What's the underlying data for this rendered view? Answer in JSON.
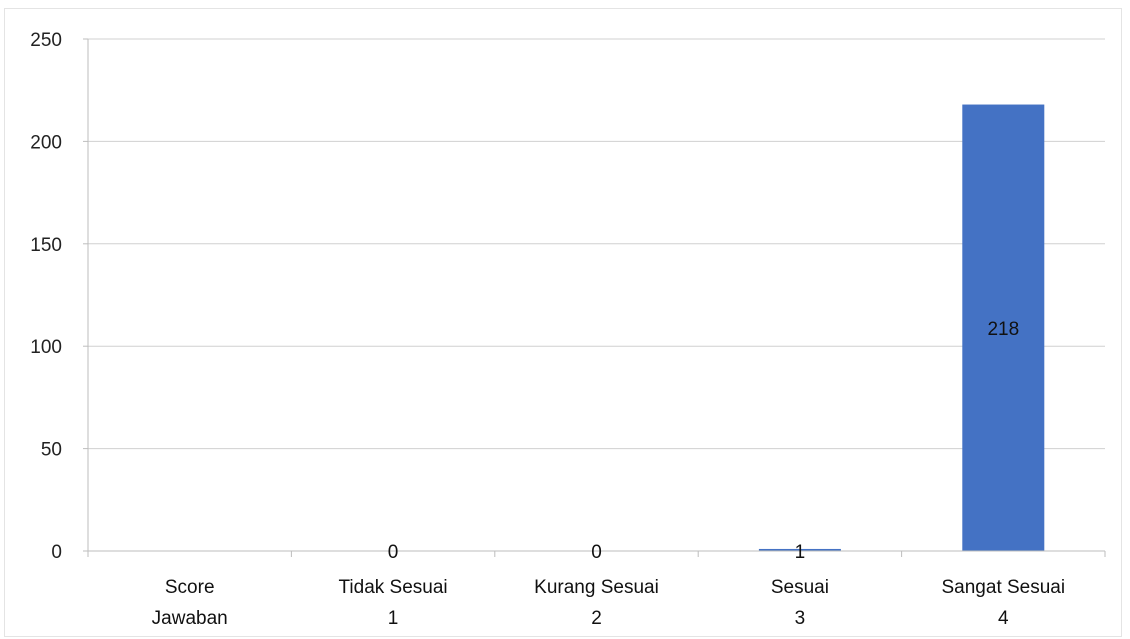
{
  "chart_data": {
    "type": "bar",
    "categories": [
      {
        "line1": "Score",
        "line2": "Jawaban"
      },
      {
        "line1": "Tidak Sesuai",
        "line2": "1"
      },
      {
        "line1": "Kurang Sesuai",
        "line2": "2"
      },
      {
        "line1": "Sesuai",
        "line2": "3"
      },
      {
        "line1": "Sangat Sesuai",
        "line2": "4"
      }
    ],
    "values": [
      null,
      0,
      0,
      1,
      218
    ],
    "data_labels": [
      "",
      "0",
      "0",
      "1",
      "218"
    ],
    "ylim": [
      0,
      250
    ],
    "yticks": [
      0,
      50,
      100,
      150,
      200,
      250
    ],
    "grid": true,
    "legend": "none",
    "bar_color": "#4472c4",
    "title": "",
    "xlabel": "",
    "ylabel": ""
  }
}
